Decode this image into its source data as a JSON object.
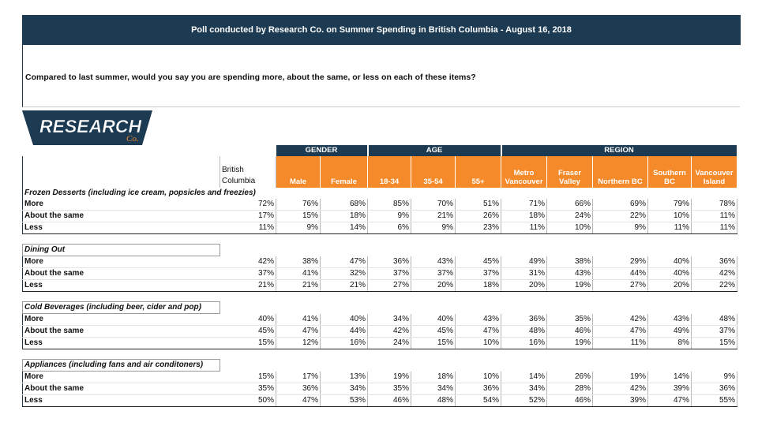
{
  "header": {
    "title": "Poll conducted by Research Co. on Summer Spending in British Columbia - August 16, 2018",
    "question": "Compared to last summer, would you say you are spending more, about the same, or less on each of these items?"
  },
  "logo": {
    "text": "RESEARCH",
    "sub": "Co."
  },
  "colors": {
    "navy": "#1c3a52",
    "orange": "#f58a2b"
  },
  "groups": {
    "gender": "GENDER",
    "age": "AGE",
    "region": "REGION"
  },
  "columns": [
    "British Columbia",
    "Male",
    "Female",
    "18-34",
    "35-54",
    "55+",
    "Metro Vancouver",
    "Fraser Valley",
    "Northern BC",
    "Southern BC",
    "Vancouver Island"
  ],
  "sections": [
    {
      "title": "Frozen Desserts (including ice cream, popsicles and freezies)",
      "rows": [
        {
          "label": "More",
          "values": [
            "72%",
            "76%",
            "68%",
            "85%",
            "70%",
            "51%",
            "71%",
            "66%",
            "69%",
            "79%",
            "78%"
          ]
        },
        {
          "label": "About the same",
          "values": [
            "17%",
            "15%",
            "18%",
            "9%",
            "21%",
            "26%",
            "18%",
            "24%",
            "22%",
            "10%",
            "11%"
          ]
        },
        {
          "label": "Less",
          "values": [
            "11%",
            "9%",
            "14%",
            "6%",
            "9%",
            "23%",
            "11%",
            "10%",
            "9%",
            "11%",
            "11%"
          ]
        }
      ]
    },
    {
      "title": "Dining Out",
      "rows": [
        {
          "label": "More",
          "values": [
            "42%",
            "38%",
            "47%",
            "36%",
            "43%",
            "45%",
            "49%",
            "38%",
            "29%",
            "40%",
            "36%"
          ]
        },
        {
          "label": "About the same",
          "values": [
            "37%",
            "41%",
            "32%",
            "37%",
            "37%",
            "37%",
            "31%",
            "43%",
            "44%",
            "40%",
            "42%"
          ]
        },
        {
          "label": "Less",
          "values": [
            "21%",
            "21%",
            "21%",
            "27%",
            "20%",
            "18%",
            "20%",
            "19%",
            "27%",
            "20%",
            "22%"
          ]
        }
      ]
    },
    {
      "title": "Cold Beverages (including beer, cider and pop)",
      "rows": [
        {
          "label": "More",
          "values": [
            "40%",
            "41%",
            "40%",
            "34%",
            "40%",
            "43%",
            "36%",
            "35%",
            "42%",
            "43%",
            "48%"
          ]
        },
        {
          "label": "About the same",
          "values": [
            "45%",
            "47%",
            "44%",
            "42%",
            "45%",
            "47%",
            "48%",
            "46%",
            "47%",
            "49%",
            "37%"
          ]
        },
        {
          "label": "Less",
          "values": [
            "15%",
            "12%",
            "16%",
            "24%",
            "15%",
            "10%",
            "16%",
            "19%",
            "11%",
            "8%",
            "15%"
          ]
        }
      ]
    },
    {
      "title": "Appliances (including fans and air conditoners)",
      "rows": [
        {
          "label": "More",
          "values": [
            "15%",
            "17%",
            "13%",
            "19%",
            "18%",
            "10%",
            "14%",
            "26%",
            "19%",
            "14%",
            "9%"
          ]
        },
        {
          "label": "About the same",
          "values": [
            "35%",
            "36%",
            "34%",
            "35%",
            "34%",
            "36%",
            "34%",
            "28%",
            "42%",
            "39%",
            "36%"
          ]
        },
        {
          "label": "Less",
          "values": [
            "50%",
            "47%",
            "53%",
            "46%",
            "48%",
            "54%",
            "52%",
            "46%",
            "39%",
            "47%",
            "55%"
          ]
        }
      ]
    }
  ]
}
